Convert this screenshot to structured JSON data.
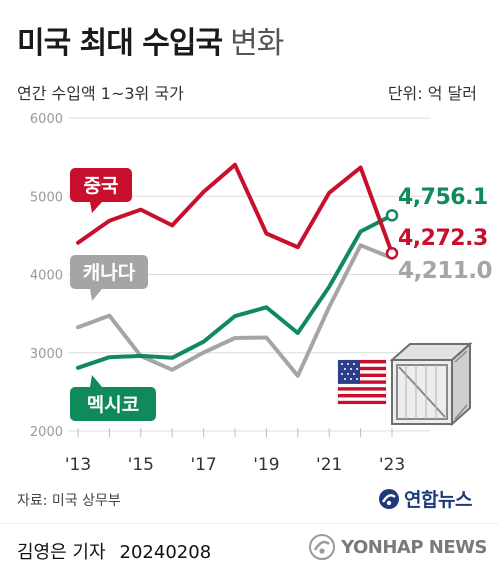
{
  "header": {
    "title_main": "미국 최대 수입국",
    "title_sub": "변화",
    "subtitle": "연간 수입액 1~3위 국가",
    "unit": "단위: 억 달러"
  },
  "chart_data": {
    "type": "line",
    "x": [
      2013,
      2014,
      2015,
      2016,
      2017,
      2018,
      2019,
      2020,
      2021,
      2022,
      2023
    ],
    "xticks": [
      "'13",
      "'15",
      "'17",
      "'19",
      "'21",
      "'23"
    ],
    "ylim": [
      2000,
      6000
    ],
    "yticks": [
      "2000",
      "3000",
      "4000",
      "5000",
      "6000"
    ],
    "grid": true,
    "series": [
      {
        "name": "중국",
        "color": "#c8102e",
        "values": [
          4405,
          4687,
          4830,
          4628,
          5055,
          5402,
          4524,
          4349,
          5044,
          5368,
          4272.3
        ]
      },
      {
        "name": "캐나다",
        "color": "#a5a5a5",
        "values": [
          3326,
          3475,
          2958,
          2782,
          3003,
          3189,
          3195,
          2706,
          3586,
          4373,
          4211.0
        ]
      },
      {
        "name": "멕시코",
        "color": "#108a5a",
        "values": [
          2808,
          2943,
          2960,
          2935,
          3141,
          3469,
          3581,
          3253,
          3843,
          4550,
          4756.1
        ]
      }
    ],
    "end_labels": [
      "4,756.1",
      "4,272.3",
      "4,211.0"
    ]
  },
  "footer": {
    "source": "자료: 미국 상무부",
    "agency": "연합뉴스",
    "reporter": "김영은 기자",
    "date": "20240208",
    "watermark": "YONHAP NEWS"
  },
  "icons": [
    "us-flag-icon",
    "shipping-crate-icon",
    "yonhap-logo-icon"
  ]
}
